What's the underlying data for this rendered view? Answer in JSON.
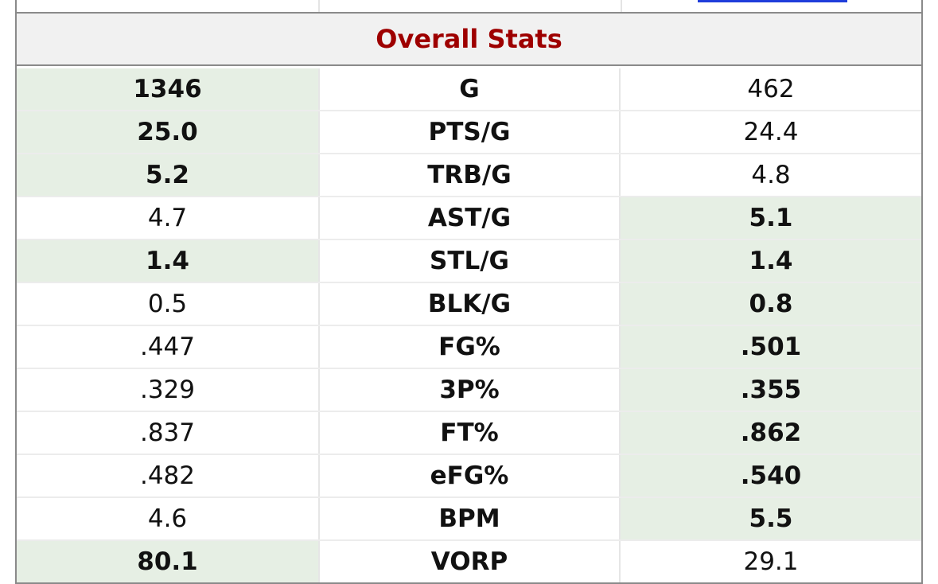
{
  "title": "Overall Stats",
  "colors": {
    "title": "#9e0000",
    "highlight": "#e6efe4",
    "border": "#8a8a8a",
    "link": "#1f3ddb"
  },
  "rows": [
    {
      "stat": "G",
      "left": "1346",
      "right": "462",
      "winner": "left"
    },
    {
      "stat": "PTS/G",
      "left": "25.0",
      "right": "24.4",
      "winner": "left"
    },
    {
      "stat": "TRB/G",
      "left": "5.2",
      "right": "4.8",
      "winner": "left"
    },
    {
      "stat": "AST/G",
      "left": "4.7",
      "right": "5.1",
      "winner": "right"
    },
    {
      "stat": "STL/G",
      "left": "1.4",
      "right": "1.4",
      "winner": "both"
    },
    {
      "stat": "BLK/G",
      "left": "0.5",
      "right": "0.8",
      "winner": "right"
    },
    {
      "stat": "FG%",
      "left": ".447",
      "right": ".501",
      "winner": "right"
    },
    {
      "stat": "3P%",
      "left": ".329",
      "right": ".355",
      "winner": "right"
    },
    {
      "stat": "FT%",
      "left": ".837",
      "right": ".862",
      "winner": "right"
    },
    {
      "stat": "eFG%",
      "left": ".482",
      "right": ".540",
      "winner": "right"
    },
    {
      "stat": "BPM",
      "left": "4.6",
      "right": "5.5",
      "winner": "right"
    },
    {
      "stat": "VORP",
      "left": "80.1",
      "right": "29.1",
      "winner": "left"
    }
  ]
}
